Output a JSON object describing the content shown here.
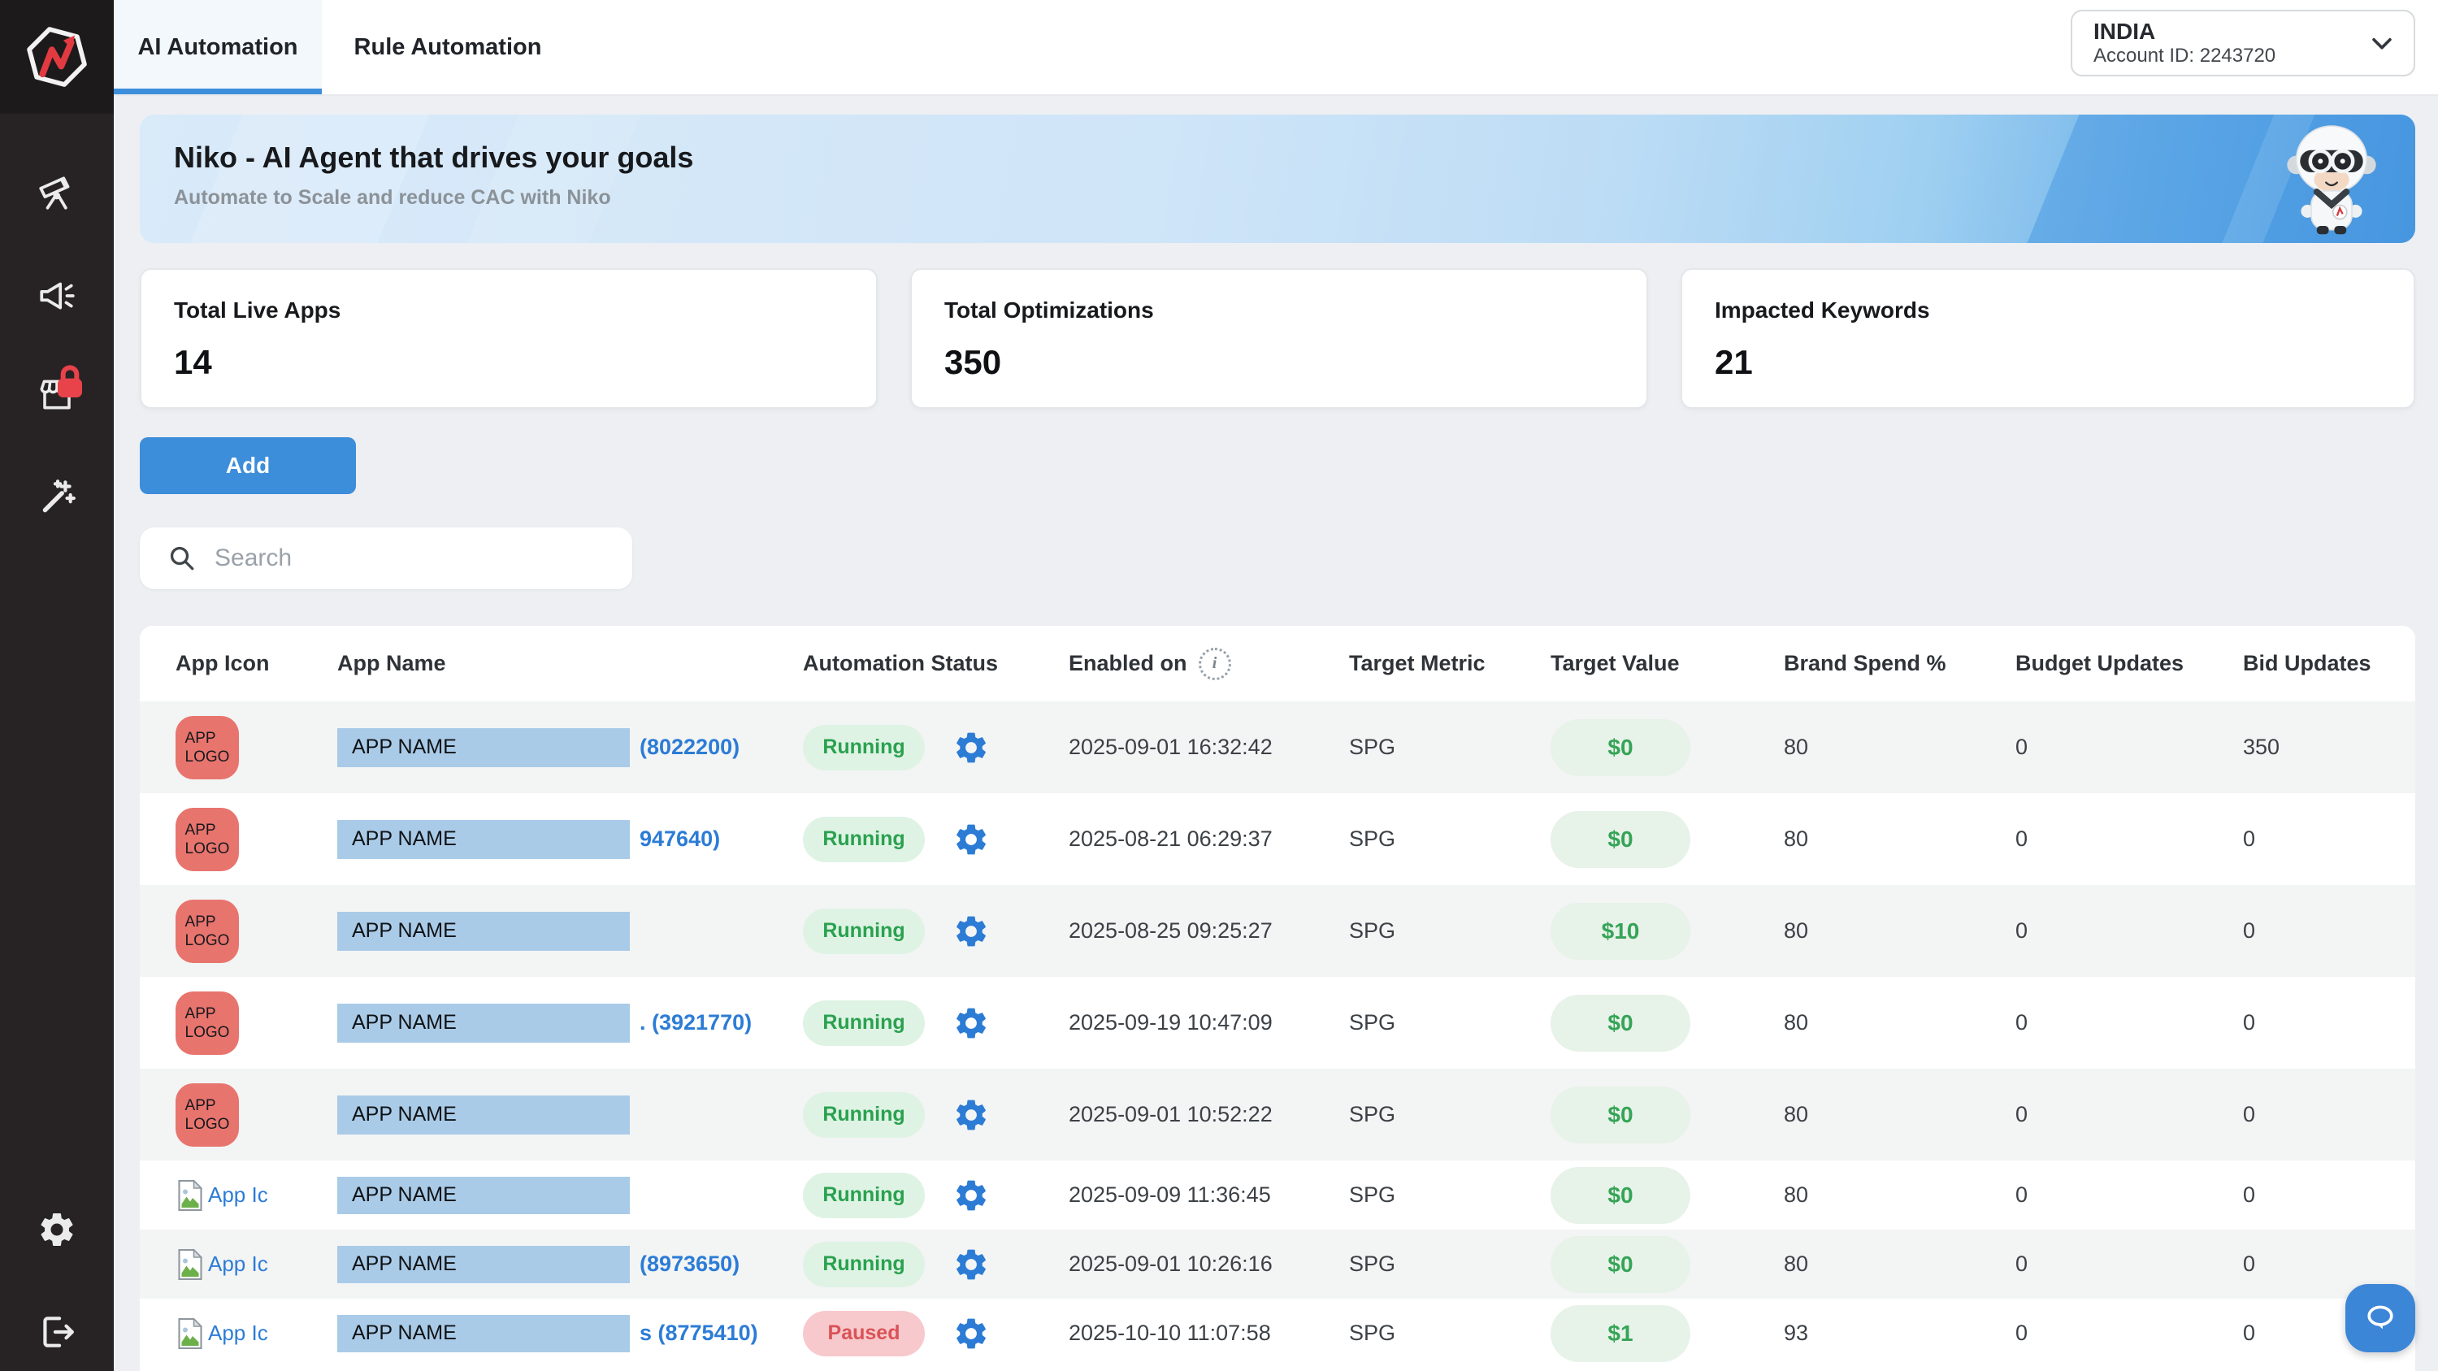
{
  "window": {
    "tabs": [
      {
        "label": "AI Automation",
        "active": true
      },
      {
        "label": "Rule Automation",
        "active": false
      }
    ]
  },
  "account": {
    "region": "INDIA",
    "account_id": "Account ID: 2243720"
  },
  "banner": {
    "title": "Niko - AI Agent that drives your goals",
    "subtitle": "Automate to Scale and reduce CAC with Niko",
    "mascot": "niko-robot-mascot"
  },
  "stats": [
    {
      "label": "Total Live Apps",
      "value": "14"
    },
    {
      "label": "Total Optimizations",
      "value": "350"
    },
    {
      "label": "Impacted Keywords",
      "value": "21"
    }
  ],
  "toolbar": {
    "add_label": "Add",
    "search_placeholder": "Search"
  },
  "table": {
    "columns": [
      "App Icon",
      "App Name",
      "Automation Status",
      "Enabled on",
      "Target Metric",
      "Target Value",
      "Brand Spend %",
      "Budget Updates",
      "Bid Updates"
    ],
    "rows": [
      {
        "icon": "placeholder",
        "icon_text": "APP LOGO",
        "name": "APP NAME",
        "id": "(8022200)",
        "status": "Running",
        "enabled_on": "2025-09-01 16:32:42",
        "target_metric": "SPG",
        "target_value": "$0",
        "brand_spend": "80",
        "budget_updates": "0",
        "bid_updates": "350"
      },
      {
        "icon": "placeholder",
        "icon_text": "APP LOGO",
        "name": "APP NAME",
        "id": "947640)",
        "status": "Running",
        "enabled_on": "2025-08-21 06:29:37",
        "target_metric": "SPG",
        "target_value": "$0",
        "brand_spend": "80",
        "budget_updates": "0",
        "bid_updates": "0"
      },
      {
        "icon": "placeholder",
        "icon_text": "APP LOGO",
        "name": "APP NAME",
        "id": "",
        "status": "Running",
        "enabled_on": "2025-08-25 09:25:27",
        "target_metric": "SPG",
        "target_value": "$10",
        "brand_spend": "80",
        "budget_updates": "0",
        "bid_updates": "0"
      },
      {
        "icon": "placeholder",
        "icon_text": "APP LOGO",
        "name": "APP NAME",
        "id": ". (3921770)",
        "status": "Running",
        "enabled_on": "2025-09-19 10:47:09",
        "target_metric": "SPG",
        "target_value": "$0",
        "brand_spend": "80",
        "budget_updates": "0",
        "bid_updates": "0"
      },
      {
        "icon": "placeholder",
        "icon_text": "APP LOGO",
        "name": "APP NAME",
        "id": "",
        "status": "Running",
        "enabled_on": "2025-09-01 10:52:22",
        "target_metric": "SPG",
        "target_value": "$0",
        "brand_spend": "80",
        "budget_updates": "0",
        "bid_updates": "0"
      },
      {
        "icon": "broken",
        "icon_alt": "App Ic",
        "name": "APP NAME",
        "id": "",
        "status": "Running",
        "enabled_on": "2025-09-09 11:36:45",
        "target_metric": "SPG",
        "target_value": "$0",
        "brand_spend": "80",
        "budget_updates": "0",
        "bid_updates": "0"
      },
      {
        "icon": "broken",
        "icon_alt": "App Ic",
        "name": "APP NAME",
        "id": "(8973650)",
        "status": "Running",
        "enabled_on": "2025-09-01 10:26:16",
        "target_metric": "SPG",
        "target_value": "$0",
        "brand_spend": "80",
        "budget_updates": "0",
        "bid_updates": "0"
      },
      {
        "icon": "broken",
        "icon_alt": "App Ic",
        "name": "APP NAME",
        "id": "s (8775410)",
        "status": "Paused",
        "enabled_on": "2025-10-10 11:07:58",
        "target_metric": "SPG",
        "target_value": "$1",
        "brand_spend": "93",
        "budget_updates": "0",
        "bid_updates": "0"
      }
    ]
  },
  "sidebar": {
    "icons": [
      "telescope-icon",
      "megaphone-icon",
      "storefront-locked-icon",
      "magic-wand-icon"
    ],
    "footer_icons": [
      "settings-icon",
      "logout-icon"
    ]
  },
  "chat": {
    "icon": "chat-bubble-icon"
  },
  "colors": {
    "accent_blue": "#3c8dda",
    "link_blue": "#2c7cd6",
    "sidebar_bg": "#272324",
    "row_stripe": "#f3f4f4",
    "running_bg": "#def3e4",
    "running_text": "#2aa14f",
    "paused_bg": "#f8c9cc",
    "paused_text": "#d95356",
    "value_pill_bg": "#e7f2e8",
    "value_pill_text": "#35a457",
    "app_logo_placeholder": "#e8746e",
    "app_name_redaction": "#a9cbe8",
    "banner_blue_light": "#d9eaf9",
    "banner_blue_dark": "#4f9de3",
    "lock_badge": "#e8424b"
  }
}
